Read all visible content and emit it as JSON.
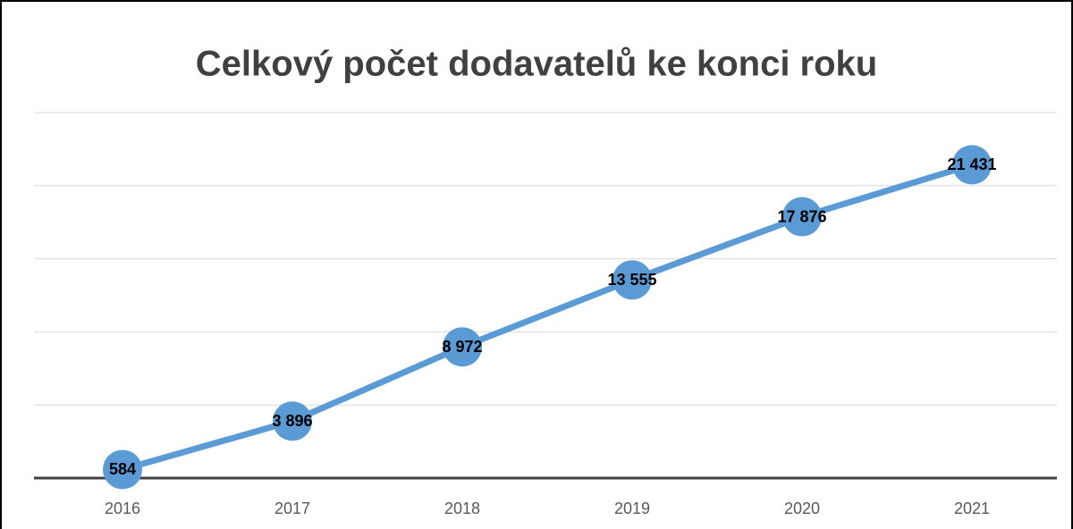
{
  "chart_data": {
    "type": "line",
    "title": "Celkový počet dodavatelů ke konci roku",
    "categories": [
      "2016",
      "2017",
      "2018",
      "2019",
      "2020",
      "2021"
    ],
    "values": [
      584,
      3896,
      8972,
      13555,
      17876,
      21431
    ],
    "value_labels": [
      "584",
      "3 896",
      "8 972",
      "13 555",
      "17 876",
      "21 431"
    ],
    "color": "#5b9bd5",
    "ylim": [
      0,
      25000
    ],
    "yticks": [
      0,
      5000,
      10000,
      15000,
      20000,
      25000
    ],
    "grid": true
  }
}
